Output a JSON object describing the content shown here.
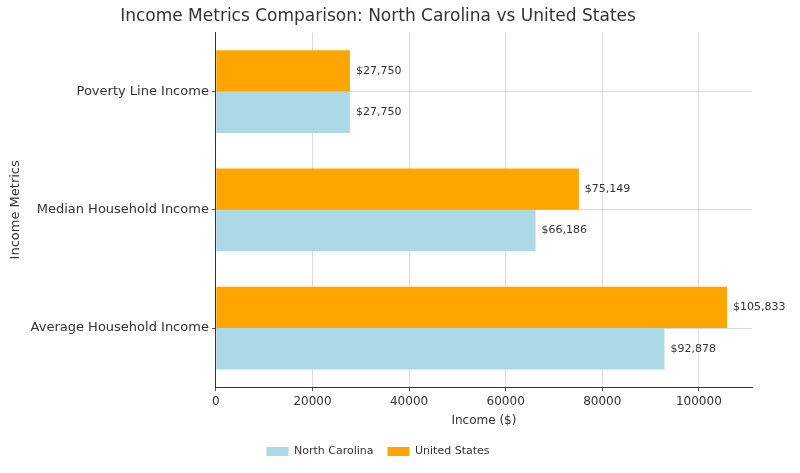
{
  "chart_data": {
    "type": "bar",
    "orientation": "horizontal",
    "title": "Income Metrics Comparison: North Carolina vs United States",
    "x_label": "Income ($)",
    "y_label": "Income Metrics",
    "categories": [
      "Poverty Line Income",
      "Median Household Income",
      "Average Household Income"
    ],
    "series": [
      {
        "name": "North Carolina",
        "color": "#add8e6",
        "values": [
          27750,
          66186,
          92878
        ],
        "value_labels": [
          "$27,750",
          "$66,186",
          "$92,878"
        ]
      },
      {
        "name": "United States",
        "color": "#ffa500",
        "values": [
          27750,
          75149,
          105833
        ],
        "value_labels": [
          "$27,750",
          "$75,149",
          "$105,833"
        ]
      }
    ],
    "xlim": [
      0,
      111000
    ],
    "xticks": [
      0,
      20000,
      40000,
      60000,
      80000,
      100000
    ],
    "grid": true,
    "legend": "bottom",
    "data_labels": true
  }
}
